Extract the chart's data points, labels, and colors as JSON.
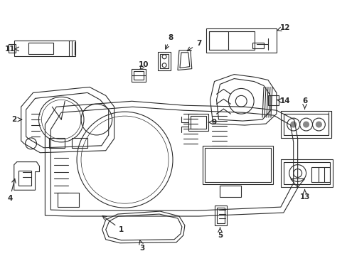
{
  "bg_color": "#ffffff",
  "line_color": "#2a2a2a",
  "lw": 0.8,
  "fig_w": 4.89,
  "fig_h": 3.6,
  "dpi": 100
}
